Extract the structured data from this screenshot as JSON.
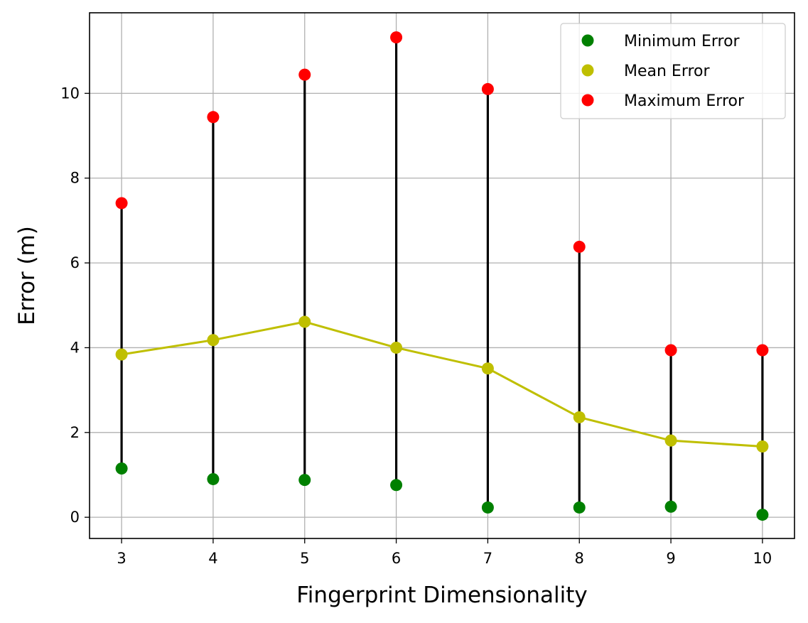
{
  "chart_data": {
    "type": "line",
    "xlabel": "Fingerprint Dimensionality",
    "ylabel": "Error (m)",
    "x": [
      3,
      4,
      5,
      6,
      7,
      8,
      9,
      10
    ],
    "xticks": [
      "3",
      "4",
      "5",
      "6",
      "7",
      "8",
      "9",
      "10"
    ],
    "yticks": [
      "0",
      "2",
      "4",
      "6",
      "8",
      "10"
    ],
    "xlim": [
      2.65,
      10.35
    ],
    "ylim": [
      -0.5,
      11.9
    ],
    "grid": true,
    "legend_position": "top-right",
    "series": [
      {
        "name": "Minimum Error",
        "color": "#008000",
        "values": [
          1.15,
          0.9,
          0.88,
          0.76,
          0.23,
          0.23,
          0.25,
          0.06
        ],
        "line": false
      },
      {
        "name": "Mean Error",
        "color": "#bfbf00",
        "values": [
          3.84,
          4.18,
          4.61,
          4.0,
          3.51,
          2.36,
          1.81,
          1.67
        ],
        "line": true
      },
      {
        "name": "Maximum Error",
        "color": "#ff0000",
        "values": [
          7.41,
          9.44,
          10.44,
          11.32,
          10.1,
          6.38,
          3.94,
          3.94
        ],
        "line": false
      }
    ],
    "range_bar_color": "#000000"
  }
}
